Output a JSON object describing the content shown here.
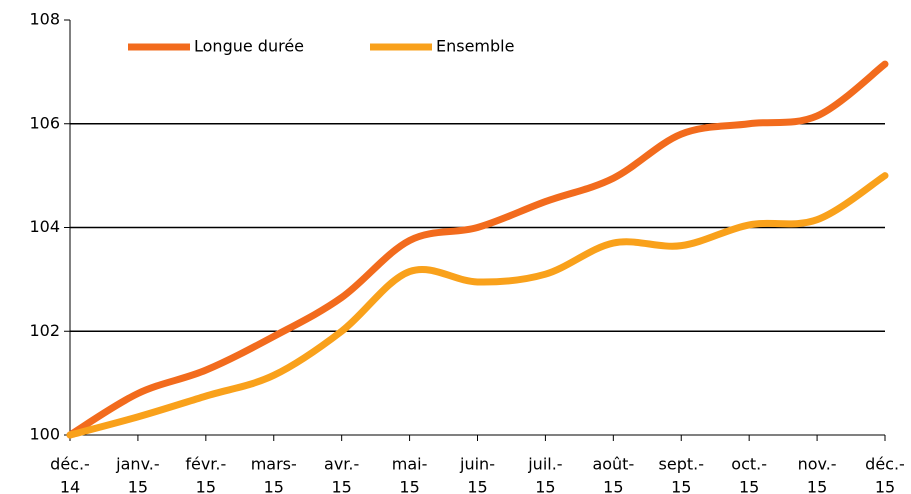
{
  "chart_data": {
    "type": "line",
    "categories": [
      [
        "déc.-",
        "14"
      ],
      [
        "janv.-",
        "15"
      ],
      [
        "févr.-",
        "15"
      ],
      [
        "mars-",
        "15"
      ],
      [
        "avr.-",
        "15"
      ],
      [
        "mai-",
        "15"
      ],
      [
        "juin-",
        "15"
      ],
      [
        "juil.-",
        "15"
      ],
      [
        "août-",
        "15"
      ],
      [
        "sept.-",
        "15"
      ],
      [
        "oct.-",
        "15"
      ],
      [
        "nov.-",
        "15"
      ],
      [
        "déc.-",
        "15"
      ]
    ],
    "series": [
      {
        "name": "Longue durée",
        "color": "#f26b1d",
        "values": [
          100,
          100.8,
          101.25,
          101.9,
          102.65,
          103.75,
          104.0,
          104.5,
          104.95,
          105.8,
          106.0,
          106.15,
          107.15
        ]
      },
      {
        "name": "Ensemble",
        "color": "#f9a11b",
        "values": [
          100,
          100.35,
          100.75,
          101.15,
          102.0,
          103.15,
          102.95,
          103.1,
          103.7,
          103.65,
          104.05,
          104.15,
          105.0
        ]
      }
    ],
    "ylim": [
      100,
      108
    ],
    "yticks": [
      100,
      102,
      104,
      106,
      108
    ],
    "grid": true,
    "legend": "top"
  }
}
